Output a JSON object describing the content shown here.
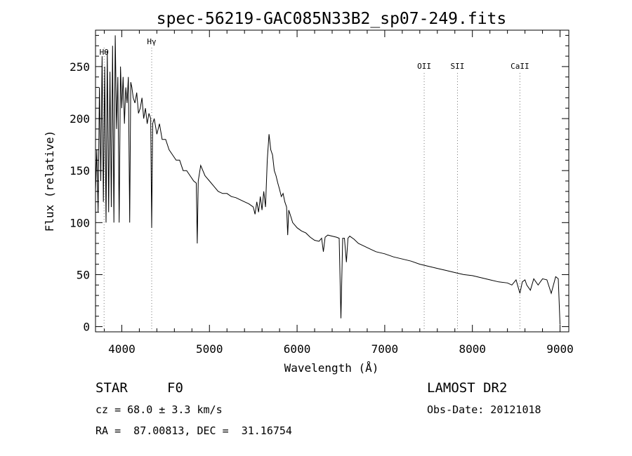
{
  "chart_data": {
    "type": "line",
    "title": "spec-56219-GAC085N33B2_sp07-249.fits",
    "xlabel": "Wavelength (Å)",
    "ylabel": "Flux (relative)",
    "xlim": [
      3700,
      9100
    ],
    "ylim": [
      -5,
      285
    ],
    "x_ticks": [
      4000,
      5000,
      6000,
      7000,
      8000,
      9000
    ],
    "y_ticks": [
      0,
      50,
      100,
      150,
      200,
      250
    ],
    "grid": false,
    "line_color": "#000000",
    "marker_color": "#777777",
    "line_markers": [
      {
        "label": "Hθ",
        "x": 3798
      },
      {
        "label": "Hγ",
        "x": 4341
      },
      {
        "label": "OII",
        "x": 7450
      },
      {
        "label": "SII",
        "x": 7830
      },
      {
        "label": "CaII",
        "x": 8542
      }
    ],
    "series": [
      {
        "x": [
          3700,
          3715,
          3730,
          3745,
          3760,
          3775,
          3790,
          3805,
          3820,
          3835,
          3850,
          3865,
          3880,
          3895,
          3910,
          3925,
          3940,
          3955,
          3970,
          3985,
          4000,
          4015,
          4030,
          4045,
          4060,
          4075,
          4090,
          4102,
          4115,
          4130,
          4150,
          4170,
          4190,
          4210,
          4230,
          4250,
          4270,
          4290,
          4310,
          4330,
          4341,
          4352,
          4370,
          4400,
          4430,
          4460,
          4500,
          4540,
          4580,
          4620,
          4660,
          4700,
          4740,
          4780,
          4820,
          4850,
          4861,
          4872,
          4900,
          4950,
          5000,
          5050,
          5100,
          5150,
          5200,
          5250,
          5300,
          5350,
          5400,
          5450,
          5500,
          5520,
          5540,
          5560,
          5580,
          5600,
          5620,
          5640,
          5660,
          5680,
          5700,
          5720,
          5740,
          5760,
          5780,
          5800,
          5820,
          5840,
          5860,
          5880,
          5893,
          5905,
          5920,
          5950,
          6000,
          6050,
          6100,
          6150,
          6200,
          6250,
          6280,
          6300,
          6320,
          6350,
          6400,
          6450,
          6480,
          6500,
          6520,
          6540,
          6563,
          6580,
          6600,
          6650,
          6700,
          6750,
          6800,
          6850,
          6900,
          6950,
          7000,
          7100,
          7200,
          7300,
          7400,
          7500,
          7600,
          7700,
          7800,
          7900,
          8000,
          8100,
          8200,
          8300,
          8400,
          8450,
          8498,
          8542,
          8570,
          8600,
          8620,
          8662,
          8700,
          8750,
          8800,
          8850,
          8900,
          8950,
          8980,
          9000
        ],
        "values": [
          130,
          170,
          110,
          230,
          140,
          260,
          120,
          250,
          100,
          265,
          110,
          245,
          115,
          270,
          100,
          280,
          190,
          240,
          100,
          250,
          210,
          240,
          195,
          230,
          215,
          240,
          100,
          235,
          230,
          220,
          215,
          225,
          205,
          210,
          220,
          200,
          210,
          195,
          205,
          200,
          95,
          195,
          200,
          185,
          195,
          180,
          180,
          170,
          165,
          160,
          160,
          150,
          150,
          145,
          140,
          138,
          80,
          140,
          155,
          145,
          140,
          135,
          130,
          128,
          128,
          125,
          124,
          122,
          120,
          118,
          115,
          108,
          120,
          110,
          125,
          112,
          130,
          115,
          160,
          185,
          170,
          165,
          150,
          145,
          138,
          132,
          125,
          128,
          120,
          115,
          88,
          112,
          108,
          100,
          95,
          92,
          90,
          86,
          83,
          82,
          85,
          72,
          86,
          88,
          87,
          86,
          85,
          8,
          85,
          85,
          62,
          85,
          87,
          84,
          80,
          78,
          76,
          74,
          72,
          71,
          70,
          67,
          65,
          63,
          60,
          58,
          56,
          54,
          52,
          50,
          49,
          47,
          45,
          43,
          42,
          40,
          45,
          32,
          43,
          45,
          40,
          35,
          46,
          40,
          46,
          45,
          32,
          48,
          46,
          2
        ]
      }
    ],
    "info": {
      "class_label": "STAR",
      "subclass": "F0",
      "survey": "LAMOST DR2",
      "cz": "cz = 68.0 ± 3.3 km/s",
      "obs_date": "Obs-Date: 20121018",
      "coords": "RA =  87.00813, DEC =  31.16754"
    }
  }
}
